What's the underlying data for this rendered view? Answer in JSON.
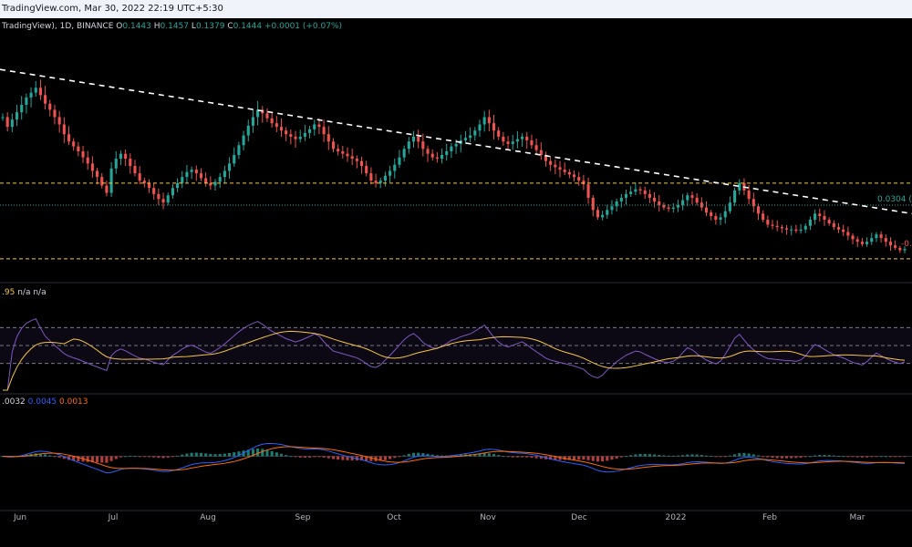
{
  "header": {
    "text": "TradingView.com, Mar 30, 2022 22:19 UTC+5:30"
  },
  "legend": {
    "symbol": "TradingView), 1D, BINANCE",
    "o_label": "O",
    "o": "0.1443",
    "h_label": "H",
    "h": "0.1457",
    "l_label": "L",
    "l": "0.1379",
    "c_label": "C",
    "c": "0.1444",
    "change": "+0.0001 (+0.07%)"
  },
  "rsi_legend": {
    "value": ".95",
    "na1": "n/a",
    "na2": "n/a"
  },
  "macd_legend": {
    "hist": ".0032",
    "macd": "0.0045",
    "signal": "0.0013"
  },
  "colors": {
    "up": "#26a69a",
    "down": "#ef5350",
    "trendline": "#ffffff",
    "level": "#f5c542",
    "green_level": "#26a69a",
    "rsi": "#7e57c2",
    "rsi_ma": "#f5c542",
    "macd": "#2962ff",
    "signal": "#ff6d00"
  },
  "annotations": {
    "upper": "0.0304 (",
    "lower": "-0."
  },
  "chart_data": {
    "type": "candlestick",
    "x_ticks": [
      "Jun",
      "Jul",
      "Aug",
      "Sep",
      "Oct",
      "Nov",
      "Dec",
      "2022",
      "Feb",
      "Mar"
    ],
    "date_range": [
      "2021-05-30",
      "2022-03-30"
    ],
    "closes": [
      0.252,
      0.244,
      0.25,
      0.256,
      0.262,
      0.268,
      0.272,
      0.276,
      0.27,
      0.263,
      0.258,
      0.252,
      0.246,
      0.238,
      0.232,
      0.228,
      0.224,
      0.219,
      0.214,
      0.208,
      0.203,
      0.196,
      0.19,
      0.21,
      0.218,
      0.222,
      0.218,
      0.212,
      0.206,
      0.2,
      0.198,
      0.194,
      0.189,
      0.185,
      0.182,
      0.188,
      0.194,
      0.198,
      0.203,
      0.207,
      0.209,
      0.206,
      0.202,
      0.198,
      0.196,
      0.199,
      0.203,
      0.208,
      0.214,
      0.221,
      0.229,
      0.237,
      0.245,
      0.252,
      0.258,
      0.255,
      0.251,
      0.247,
      0.244,
      0.241,
      0.238,
      0.236,
      0.234,
      0.236,
      0.239,
      0.242,
      0.246,
      0.244,
      0.238,
      0.232,
      0.226,
      0.224,
      0.222,
      0.22,
      0.218,
      0.216,
      0.212,
      0.206,
      0.2,
      0.198,
      0.2,
      0.204,
      0.208,
      0.213,
      0.219,
      0.226,
      0.232,
      0.236,
      0.232,
      0.226,
      0.222,
      0.219,
      0.218,
      0.221,
      0.224,
      0.228,
      0.23,
      0.233,
      0.235,
      0.237,
      0.241,
      0.246,
      0.252,
      0.247,
      0.241,
      0.236,
      0.232,
      0.23,
      0.232,
      0.234,
      0.236,
      0.233,
      0.229,
      0.225,
      0.221,
      0.216,
      0.213,
      0.211,
      0.209,
      0.207,
      0.205,
      0.203,
      0.2,
      0.197,
      0.186,
      0.176,
      0.17,
      0.172,
      0.176,
      0.179,
      0.183,
      0.186,
      0.189,
      0.191,
      0.193,
      0.192,
      0.189,
      0.186,
      0.183,
      0.18,
      0.178,
      0.177,
      0.178,
      0.18,
      0.184,
      0.188,
      0.186,
      0.182,
      0.178,
      0.174,
      0.171,
      0.168,
      0.17,
      0.175,
      0.182,
      0.192,
      0.198,
      0.192,
      0.185,
      0.179,
      0.173,
      0.168,
      0.164,
      0.163,
      0.162,
      0.161,
      0.16,
      0.16,
      0.159,
      0.16,
      0.163,
      0.168,
      0.173,
      0.171,
      0.168,
      0.165,
      0.162,
      0.16,
      0.158,
      0.155,
      0.152,
      0.15,
      0.148,
      0.15,
      0.153,
      0.156,
      0.153,
      0.15,
      0.147,
      0.145,
      0.143,
      0.144
    ],
    "trendline": {
      "start": 0.291,
      "end": 0.173
    },
    "levels": {
      "upper": 0.198,
      "mid": 0.18,
      "lower": 0.136
    },
    "y_range": [
      0.124,
      0.318
    ],
    "rsi": {
      "range": [
        0,
        100
      ],
      "bands": [
        70,
        50,
        30
      ]
    },
    "macd": {
      "range": [
        -0.045,
        0.05
      ]
    }
  }
}
